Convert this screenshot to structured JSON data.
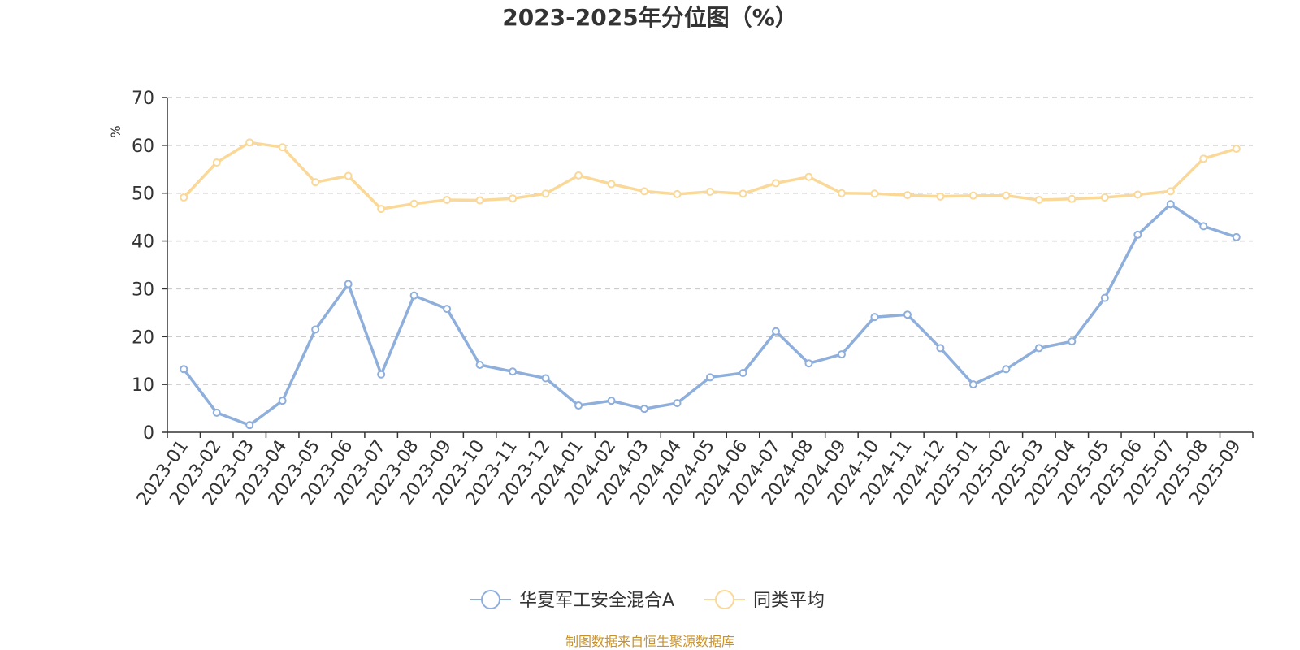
{
  "chart_data": {
    "type": "line",
    "title": "2023-2025年分位图（%）",
    "ylabel": "%",
    "xlabel": "",
    "ylim": [
      0,
      70
    ],
    "yticks": [
      0,
      10,
      20,
      30,
      40,
      50,
      60,
      70
    ],
    "grid": true,
    "legend_position": "bottom-center",
    "categories": [
      "2023-01",
      "2023-02",
      "2023-03",
      "2023-04",
      "2023-05",
      "2023-06",
      "2023-07",
      "2023-08",
      "2023-09",
      "2023-10",
      "2023-11",
      "2023-12",
      "2024-01",
      "2024-02",
      "2024-03",
      "2024-04",
      "2024-05",
      "2024-06",
      "2024-07",
      "2024-08",
      "2024-09",
      "2024-10",
      "2024-11",
      "2024-12",
      "2025-01",
      "2025-02",
      "2025-03",
      "2025-04",
      "2025-05",
      "2025-06",
      "2025-07",
      "2025-08",
      "2025-09"
    ],
    "series": [
      {
        "name": "华夏军工安全混合A",
        "color": "#8eaedb",
        "values": [
          13.2,
          4.1,
          1.5,
          6.6,
          21.5,
          31.0,
          12.1,
          28.6,
          25.8,
          14.1,
          12.7,
          11.3,
          5.6,
          6.6,
          4.9,
          6.1,
          11.5,
          12.4,
          21.1,
          14.4,
          16.3,
          24.1,
          24.6,
          17.6,
          10.0,
          13.2,
          17.6,
          19.0,
          28.1,
          41.3,
          47.7,
          43.1,
          40.8
        ]
      },
      {
        "name": "同类平均",
        "color": "#f9d898",
        "values": [
          49.1,
          56.4,
          60.6,
          59.6,
          52.3,
          53.6,
          46.7,
          47.8,
          48.6,
          48.5,
          48.9,
          49.9,
          53.7,
          51.9,
          50.4,
          49.8,
          50.3,
          49.9,
          52.1,
          53.4,
          50.0,
          49.9,
          49.6,
          49.3,
          49.5,
          49.5,
          48.6,
          48.8,
          49.1,
          49.7,
          50.4,
          57.2,
          59.3
        ]
      }
    ]
  },
  "footer": {
    "source": "制图数据来自恒生聚源数据库"
  }
}
